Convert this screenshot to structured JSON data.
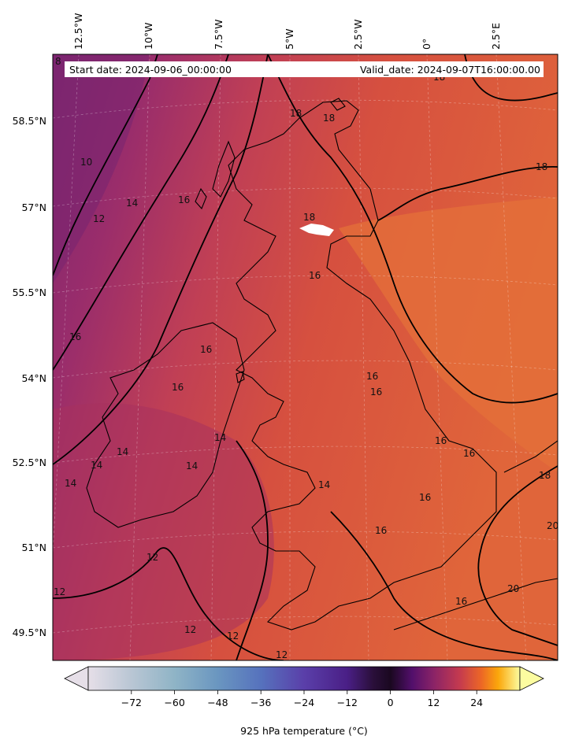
{
  "header": {
    "start_date": "Start date: 2024-09-06_00:00:00",
    "valid_date": "Valid_date: 2024-09-07T16:00:00.00"
  },
  "map": {
    "projection": "rotated pole",
    "variable": "925 hPa temperature",
    "lon_labels": [
      "12.5°W",
      "10°W",
      "7.5°W",
      "5°W",
      "2.5°W",
      "0°",
      "2.5°E"
    ],
    "lat_labels": [
      "58.5°N",
      "57°N",
      "55.5°N",
      "54°N",
      "52.5°N",
      "51°N",
      "49.5°N"
    ],
    "contour_levels": [
      10,
      12,
      14,
      16,
      18,
      20
    ],
    "contour_labels": [
      "8",
      "10",
      "12",
      "14",
      "16",
      "16",
      "16",
      "16",
      "14",
      "14",
      "14",
      "14",
      "14",
      "14",
      "16",
      "16",
      "16",
      "16",
      "16",
      "16",
      "16",
      "16",
      "18",
      "18",
      "18",
      "18",
      "18",
      "18",
      "20",
      "20",
      "12",
      "12",
      "12",
      "12",
      "12"
    ],
    "colors": {
      "cold_west": "#8a2a6e",
      "mid": "#b6385f",
      "warm": "#d9533f",
      "warmer": "#e2693a",
      "land_outline": "#000000",
      "contour": "#000000"
    }
  },
  "colorbar": {
    "label": "925 hPa temperature ($^\\circ$C)",
    "label_display": "925 hPa temperature (°C)",
    "ticks": [
      "−72",
      "−60",
      "−48",
      "−36",
      "−24",
      "−12",
      "0",
      "12",
      "24"
    ],
    "tick_values": [
      -72,
      -60,
      -48,
      -36,
      -24,
      -12,
      0,
      12,
      24
    ],
    "range": [
      -84,
      36
    ],
    "extend": "both",
    "colormap": "custom: lavender-blue-purple-black-inferno"
  }
}
